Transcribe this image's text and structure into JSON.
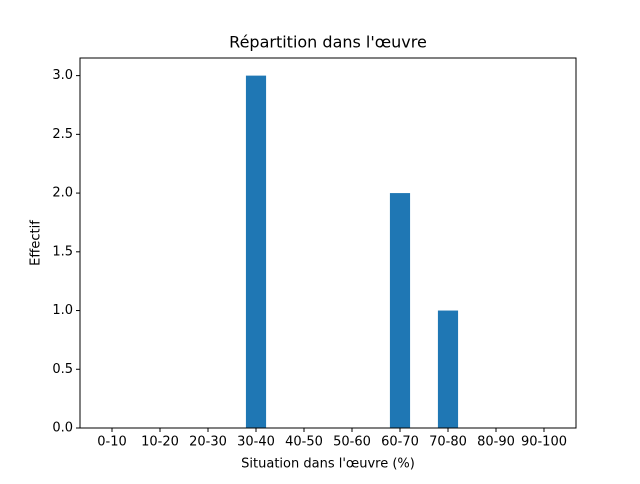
{
  "chart_data": {
    "type": "bar",
    "title": "Répartition dans l'œuvre",
    "x_label": "Situation dans l'œuvre (%)",
    "y_label": "Effectif",
    "categories": [
      "0-10",
      "10-20",
      "20-30",
      "30-40",
      "40-50",
      "50-60",
      "60-70",
      "70-80",
      "80-90",
      "90-100"
    ],
    "values": [
      0,
      0,
      0,
      3,
      0,
      0,
      2,
      1,
      0,
      0
    ],
    "color": "#1f77b4",
    "ylim": [
      0,
      3.15
    ],
    "yticks": [
      {
        "value": 0,
        "label": "0.0"
      },
      0.5,
      {
        "value": 1,
        "label": "1.0"
      },
      1.5,
      {
        "value": 2,
        "label": "2.0"
      },
      2.5,
      {
        "value": 3,
        "label": "3.0"
      }
    ]
  }
}
